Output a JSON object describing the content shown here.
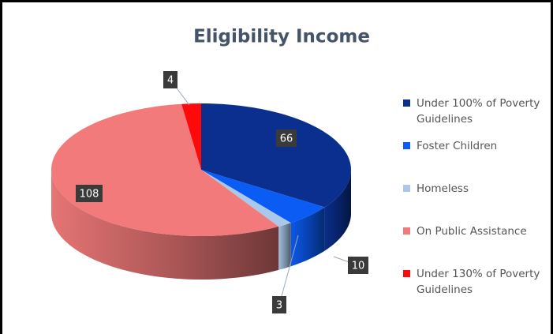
{
  "chart_data": {
    "type": "pie3d",
    "title": "Eligibility Income",
    "categories": [
      "Under 100% of Poverty Guidelines",
      "Foster Children",
      "Homeless",
      "On Public Assistance",
      "Under 130% of Poverty Guidelines"
    ],
    "values": [
      66,
      10,
      3,
      108,
      4
    ],
    "colors": [
      "#0a2f8f",
      "#0b5cf5",
      "#a9c8ea",
      "#f27a7a",
      "#ff0a0a"
    ],
    "legend": "right"
  }
}
